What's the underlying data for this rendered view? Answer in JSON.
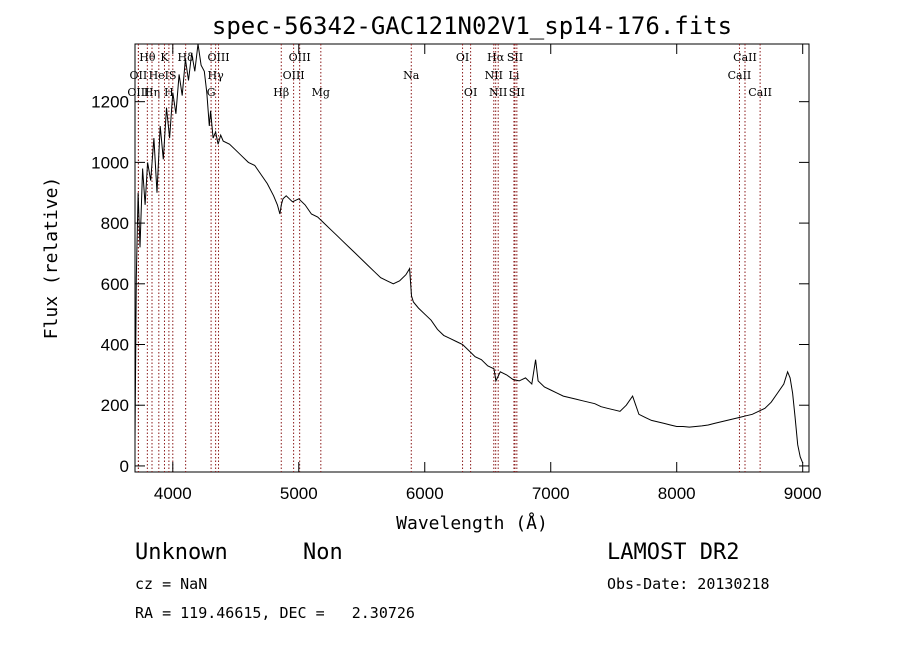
{
  "chart_data": {
    "type": "line",
    "title": "spec-56342-GAC121N02V1_sp14-176.fits",
    "xlabel": "Wavelength (Å)",
    "ylabel": "Flux (relative)",
    "xlim": [
      3700,
      9050
    ],
    "ylim": [
      -20,
      1390
    ],
    "xticks": [
      4000,
      5000,
      6000,
      7000,
      8000,
      9000
    ],
    "yticks": [
      0,
      200,
      400,
      600,
      800,
      1000,
      1200
    ],
    "grid": false,
    "line_color": "#000000",
    "marker_color": "#8b1a1a",
    "series": [
      {
        "x": [
          3700,
          3710,
          3725,
          3740,
          3760,
          3780,
          3800,
          3825,
          3850,
          3875,
          3900,
          3925,
          3950,
          3975,
          4000,
          4025,
          4050,
          4075,
          4100,
          4125,
          4150,
          4175,
          4200,
          4225,
          4250,
          4270,
          4290,
          4300,
          4320,
          4340,
          4360,
          4380,
          4400,
          4450,
          4500,
          4550,
          4600,
          4650,
          4700,
          4750,
          4800,
          4830,
          4850,
          4861,
          4875,
          4900,
          4950,
          5000,
          5050,
          5100,
          5150,
          5200,
          5250,
          5300,
          5350,
          5400,
          5450,
          5500,
          5550,
          5600,
          5650,
          5700,
          5750,
          5800,
          5850,
          5880,
          5895,
          5910,
          5930,
          5950,
          6000,
          6050,
          6100,
          6150,
          6200,
          6250,
          6300,
          6350,
          6400,
          6450,
          6500,
          6550,
          6565,
          6600,
          6650,
          6700,
          6750,
          6800,
          6850,
          6880,
          6900,
          6950,
          7000,
          7050,
          7100,
          7150,
          7200,
          7250,
          7300,
          7350,
          7400,
          7450,
          7500,
          7550,
          7600,
          7650,
          7700,
          7750,
          7800,
          7850,
          7900,
          7950,
          8000,
          8050,
          8100,
          8150,
          8200,
          8250,
          8300,
          8350,
          8400,
          8450,
          8500,
          8550,
          8600,
          8650,
          8700,
          8750,
          8800,
          8850,
          8880,
          8900,
          8920,
          8940,
          8960,
          8980,
          9000
        ],
        "y": [
          80,
          620,
          900,
          720,
          980,
          860,
          1000,
          940,
          1080,
          900,
          1120,
          1010,
          1180,
          1080,
          1230,
          1160,
          1290,
          1220,
          1340,
          1270,
          1360,
          1300,
          1390,
          1320,
          1300,
          1230,
          1120,
          1170,
          1080,
          1100,
          1060,
          1090,
          1070,
          1060,
          1040,
          1020,
          1000,
          990,
          960,
          930,
          890,
          860,
          830,
          860,
          880,
          890,
          870,
          880,
          860,
          830,
          820,
          800,
          780,
          760,
          740,
          720,
          700,
          680,
          660,
          640,
          620,
          610,
          600,
          610,
          630,
          650,
          560,
          540,
          530,
          520,
          500,
          480,
          450,
          430,
          420,
          410,
          400,
          380,
          360,
          350,
          330,
          320,
          280,
          310,
          300,
          285,
          280,
          290,
          270,
          350,
          280,
          260,
          250,
          240,
          230,
          225,
          220,
          215,
          210,
          205,
          195,
          190,
          185,
          180,
          200,
          230,
          170,
          160,
          150,
          145,
          140,
          135,
          130,
          130,
          128,
          130,
          132,
          135,
          140,
          145,
          150,
          155,
          160,
          165,
          170,
          180,
          190,
          210,
          240,
          270,
          310,
          290,
          240,
          160,
          70,
          30,
          10
        ]
      }
    ],
    "line_markers": [
      {
        "label": "Hθ",
        "x": 3798,
        "row": 1
      },
      {
        "label": "OII",
        "x": 3727,
        "row": 2
      },
      {
        "label": "OIII",
        "x": 3727,
        "row": 3
      },
      {
        "label": "Hη",
        "x": 3835,
        "row": 3
      },
      {
        "label": "HeI",
        "x": 3889,
        "row": 2
      },
      {
        "label": "K",
        "x": 3934,
        "row": 1
      },
      {
        "label": "H",
        "x": 3969,
        "row": 3
      },
      {
        "label": "S",
        "x": 4000,
        "row": 2
      },
      {
        "label": "Hδ",
        "x": 4102,
        "row": 1
      },
      {
        "label": "OIII",
        "x": 4363,
        "row": 1
      },
      {
        "label": "Hγ",
        "x": 4340,
        "row": 2
      },
      {
        "label": "G",
        "x": 4304,
        "row": 3
      },
      {
        "label": "Hβ",
        "x": 4861,
        "row": 3
      },
      {
        "label": "OIII",
        "x": 5007,
        "row": 1
      },
      {
        "label": "OIII",
        "x": 4959,
        "row": 2
      },
      {
        "label": "Mg",
        "x": 5175,
        "row": 3
      },
      {
        "label": "Na",
        "x": 5893,
        "row": 2
      },
      {
        "label": "OI",
        "x": 6300,
        "row": 1
      },
      {
        "label": "OI",
        "x": 6364,
        "row": 3
      },
      {
        "label": "Hα",
        "x": 6563,
        "row": 1
      },
      {
        "label": "NII",
        "x": 6548,
        "row": 2
      },
      {
        "label": "NII",
        "x": 6583,
        "row": 3
      },
      {
        "label": "Li",
        "x": 6708,
        "row": 2
      },
      {
        "label": "SII",
        "x": 6716,
        "row": 1
      },
      {
        "label": "SII",
        "x": 6731,
        "row": 3
      },
      {
        "label": "CaII",
        "x": 8542,
        "row": 1
      },
      {
        "label": "CaII",
        "x": 8498,
        "row": 2
      },
      {
        "label": "CaII",
        "x": 8662,
        "row": 3
      }
    ]
  },
  "info": {
    "class_label": "Unknown",
    "subclass_label": "Non",
    "survey_label": "LAMOST DR2",
    "cz_text": "cz = NaN",
    "obs_date_text": "Obs-Date: 20130218",
    "radec_text": "RA = 119.46615, DEC =   2.30726"
  }
}
